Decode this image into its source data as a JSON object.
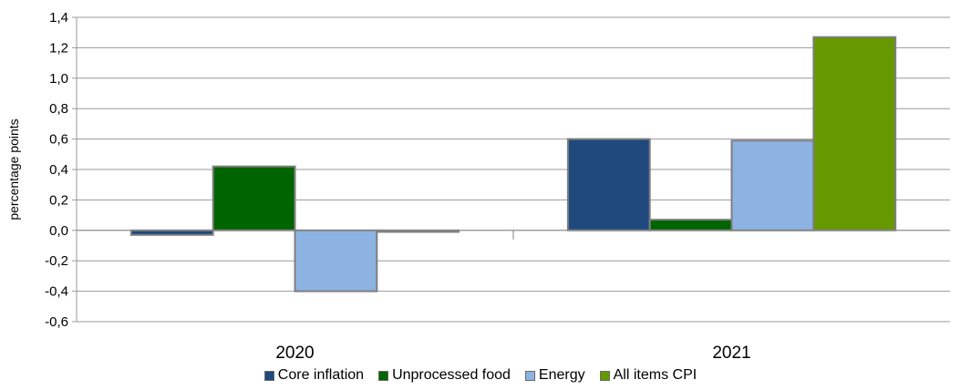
{
  "chart_data": {
    "type": "bar",
    "categories": [
      "2020",
      "2021"
    ],
    "series": [
      {
        "name": "Core inflation",
        "values": [
          -0.03,
          0.6
        ],
        "color": "#1f497d"
      },
      {
        "name": "Unprocessed food",
        "values": [
          0.42,
          0.07
        ],
        "color": "#006400"
      },
      {
        "name": "Energy",
        "values": [
          -0.4,
          0.59
        ],
        "color": "#8db3e2"
      },
      {
        "name": "All items CPI",
        "values": [
          -0.01,
          1.27
        ],
        "color": "#669900"
      }
    ],
    "ylabel": "percentage points",
    "xlabel": "",
    "title": "",
    "ylim": [
      -0.6,
      1.4
    ],
    "yticks": [
      "1,4",
      "1,2",
      "1,0",
      "0,8",
      "0,6",
      "0,4",
      "0,2",
      "0,0",
      "-0,2",
      "-0,4",
      "-0,6"
    ],
    "grid": true,
    "legend_position": "bottom"
  }
}
